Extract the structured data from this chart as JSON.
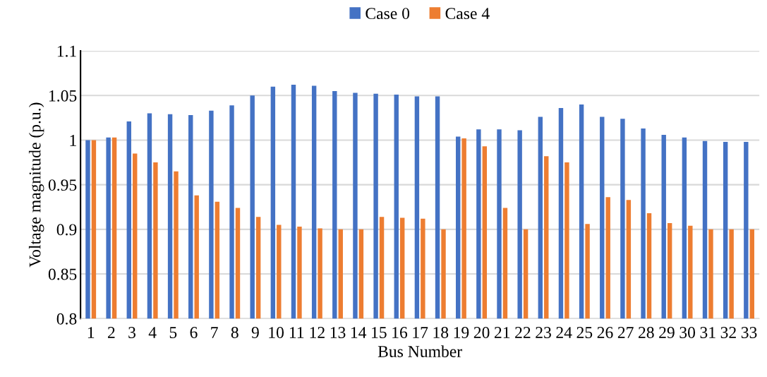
{
  "chart_data": {
    "type": "bar",
    "xlabel": "Bus Number",
    "ylabel": "Voltage magnitude (p.u.)",
    "categories": [
      "1",
      "2",
      "3",
      "4",
      "5",
      "6",
      "7",
      "8",
      "9",
      "10",
      "11",
      "12",
      "13",
      "14",
      "15",
      "16",
      "17",
      "18",
      "19",
      "20",
      "21",
      "22",
      "23",
      "24",
      "25",
      "26",
      "27",
      "28",
      "29",
      "30",
      "31",
      "32",
      "33"
    ],
    "series": [
      {
        "name": "Case 0",
        "color": "#4472c4",
        "values": [
          1.0,
          1.003,
          1.021,
          1.03,
          1.029,
          1.028,
          1.033,
          1.039,
          1.05,
          1.06,
          1.062,
          1.061,
          1.055,
          1.053,
          1.052,
          1.051,
          1.049,
          1.049,
          1.004,
          1.012,
          1.012,
          1.011,
          1.026,
          1.036,
          1.04,
          1.026,
          1.024,
          1.013,
          1.006,
          1.003,
          0.999,
          0.998,
          0.998
        ]
      },
      {
        "name": "Case 4",
        "color": "#ed7d31",
        "values": [
          1.0,
          1.003,
          0.985,
          0.975,
          0.965,
          0.938,
          0.931,
          0.924,
          0.914,
          0.905,
          0.903,
          0.901,
          0.9,
          0.9,
          0.914,
          0.913,
          0.912,
          0.9,
          1.002,
          0.993,
          0.924,
          0.9,
          0.982,
          0.975,
          0.906,
          0.936,
          0.933,
          0.918,
          0.907,
          0.904,
          0.9,
          0.9,
          0.9
        ]
      }
    ],
    "ylim": [
      0.8,
      1.1
    ],
    "yticks": [
      {
        "value": 0.8,
        "label": "0.8"
      },
      {
        "value": 0.85,
        "label": "0.85"
      },
      {
        "value": 0.9,
        "label": "0.9"
      },
      {
        "value": 0.95,
        "label": "0.95"
      },
      {
        "value": 1.0,
        "label": "1"
      },
      {
        "value": 1.05,
        "label": "1.05"
      },
      {
        "value": 1.1,
        "label": "1.1"
      }
    ],
    "grid": "y",
    "legend": "top"
  }
}
